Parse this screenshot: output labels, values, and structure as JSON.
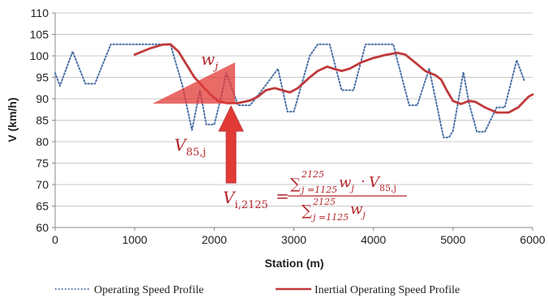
{
  "chart_data": {
    "type": "line",
    "xlabel": "Station (m)",
    "ylabel": "V (km/h)",
    "xlim": [
      0,
      6000
    ],
    "ylim": [
      60,
      110
    ],
    "x_ticks": [
      0,
      1000,
      2000,
      3000,
      4000,
      5000,
      6000
    ],
    "y_ticks": [
      60,
      65,
      70,
      75,
      80,
      85,
      90,
      95,
      100,
      105,
      110
    ],
    "grid": "horizontal",
    "legend_position": "bottom",
    "colors": {
      "operating": "#4a6fa5",
      "inertial": "#c0393b",
      "annotation": "#e23a35"
    },
    "series": [
      {
        "name": "Operating Speed Profile",
        "style": "dotted",
        "points": [
          [
            0,
            96
          ],
          [
            60,
            93
          ],
          [
            220,
            101
          ],
          [
            380,
            93.5
          ],
          [
            500,
            93.5
          ],
          [
            700,
            102.7
          ],
          [
            1150,
            102.7
          ],
          [
            1450,
            102.7
          ],
          [
            1600,
            93
          ],
          [
            1720,
            82.7
          ],
          [
            1820,
            92
          ],
          [
            1900,
            84
          ],
          [
            2000,
            84
          ],
          [
            2080,
            90
          ],
          [
            2150,
            96
          ],
          [
            2300,
            88.5
          ],
          [
            2450,
            88.5
          ],
          [
            2600,
            92
          ],
          [
            2800,
            97
          ],
          [
            2920,
            87
          ],
          [
            3000,
            87
          ],
          [
            3200,
            100
          ],
          [
            3300,
            102.7
          ],
          [
            3450,
            102.7
          ],
          [
            3600,
            92
          ],
          [
            3750,
            92
          ],
          [
            3900,
            102.7
          ],
          [
            4250,
            102.7
          ],
          [
            4300,
            99
          ],
          [
            4450,
            88.5
          ],
          [
            4550,
            88.5
          ],
          [
            4700,
            97
          ],
          [
            4780,
            90
          ],
          [
            4880,
            81
          ],
          [
            4950,
            81
          ],
          [
            5000,
            82.5
          ],
          [
            5130,
            96.2
          ],
          [
            5200,
            89
          ],
          [
            5300,
            82.3
          ],
          [
            5400,
            82.3
          ],
          [
            5550,
            88
          ],
          [
            5650,
            88
          ],
          [
            5800,
            99
          ],
          [
            5900,
            94
          ]
        ]
      },
      {
        "name": "Inertial Operating Speed Profile",
        "style": "solid",
        "points": [
          [
            1000,
            100.3
          ],
          [
            1200,
            101.8
          ],
          [
            1350,
            102.6
          ],
          [
            1450,
            102.7
          ],
          [
            1550,
            101
          ],
          [
            1650,
            98
          ],
          [
            1750,
            95
          ],
          [
            1850,
            93
          ],
          [
            1950,
            91
          ],
          [
            2050,
            89.5
          ],
          [
            2150,
            89
          ],
          [
            2300,
            89
          ],
          [
            2450,
            89.6
          ],
          [
            2550,
            90.5
          ],
          [
            2650,
            92
          ],
          [
            2760,
            92.5
          ],
          [
            2850,
            92
          ],
          [
            2950,
            91.5
          ],
          [
            3050,
            92.5
          ],
          [
            3200,
            95
          ],
          [
            3300,
            96.5
          ],
          [
            3420,
            97.5
          ],
          [
            3500,
            97
          ],
          [
            3600,
            96.5
          ],
          [
            3700,
            97
          ],
          [
            3850,
            98.5
          ],
          [
            4000,
            99.5
          ],
          [
            4150,
            100.2
          ],
          [
            4300,
            100.7
          ],
          [
            4400,
            100.3
          ],
          [
            4520,
            98.5
          ],
          [
            4650,
            96.5
          ],
          [
            4780,
            95.5
          ],
          [
            4850,
            94.5
          ],
          [
            4920,
            92
          ],
          [
            5000,
            89.5
          ],
          [
            5100,
            88.8
          ],
          [
            5200,
            89.5
          ],
          [
            5280,
            89.3
          ],
          [
            5400,
            88
          ],
          [
            5550,
            86.8
          ],
          [
            5700,
            86.8
          ],
          [
            5820,
            88
          ],
          [
            5950,
            90.5
          ],
          [
            6000,
            91
          ]
        ]
      }
    ],
    "annotations": {
      "w_label": "w",
      "w_sub": "j",
      "v85_label": "V",
      "v85_sub": "85,j",
      "formula": {
        "lhs": "V",
        "lhs_sub": "i,2125",
        "equals": "=",
        "sum": "∑",
        "upper": "2125",
        "lower": "j =1125",
        "num_terms": "w",
        "num_sub": "j",
        "dot": "·",
        "num_v": "V",
        "num_v_sub": "85,j",
        "den_terms": "w",
        "den_sub": "j"
      }
    }
  }
}
